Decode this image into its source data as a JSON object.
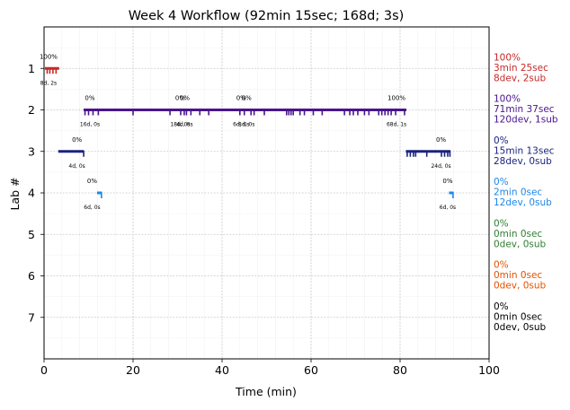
{
  "chart_data": {
    "type": "timeline",
    "title": "Week 4 Workflow (92min 15sec; 168d; 3s)",
    "xlabel": "Time (min)",
    "ylabel": "Lab #",
    "xlim": [
      0,
      100
    ],
    "ylim": [
      8,
      0
    ],
    "x_ticks": [
      "0",
      "20",
      "40",
      "60",
      "80",
      "100"
    ],
    "y_ticks": [
      "1",
      "2",
      "3",
      "4",
      "5",
      "6",
      "7"
    ],
    "grid": true,
    "labs": [
      {
        "lab": 1,
        "color": "#c62828",
        "summary": [
          "100%",
          "3min 25sec",
          "8dev, 2sub"
        ],
        "segments": [
          [
            0.2,
            3.4
          ]
        ],
        "ticks": [
          0.7,
          1.3,
          2.0,
          2.7
        ],
        "annotations": [
          {
            "x": 1.0,
            "top": "100%",
            "bottom": "8d, 2s"
          }
        ]
      },
      {
        "lab": 2,
        "color": "#4a148c",
        "summary": [
          "100%",
          "71min 37sec",
          "120dev, 1sub"
        ],
        "segments": [
          [
            8.9,
            13.0
          ],
          [
            12.6,
            81.4
          ]
        ],
        "ticks": [
          9.2,
          10.0,
          11.0,
          12.2,
          20.0,
          28.3,
          30.7,
          31.5,
          32.0,
          33.0,
          35.0,
          37.0,
          44.0,
          45.0,
          46.5,
          47.2,
          49.5,
          54.5,
          55.0,
          55.5,
          56.0,
          57.5,
          58.5,
          60.5,
          62.5,
          67.5,
          68.7,
          69.5,
          70.5,
          72.0,
          73.0,
          75.2,
          75.9,
          76.6,
          77.3,
          78.0,
          79.0,
          81.0
        ],
        "annotations": [
          {
            "x": 10.3,
            "top": "0%",
            "bottom": "16d, 0s"
          },
          {
            "x": 30.6,
            "top": "0%",
            "bottom": "18d, 0s"
          },
          {
            "x": 31.6,
            "top": "0%",
            "bottom": "4d, 0s"
          },
          {
            "x": 44.3,
            "top": "0%",
            "bottom": "6d, 0s"
          },
          {
            "x": 45.5,
            "top": "0%",
            "bottom": "8d, 0s"
          },
          {
            "x": 79.2,
            "top": "100%",
            "bottom": "68d, 1s"
          }
        ]
      },
      {
        "lab": 3,
        "color": "#1a237e",
        "summary": [
          "0%",
          "15min 13sec",
          "28dev, 0sub"
        ],
        "segments": [
          [
            3.2,
            8.9
          ],
          [
            81.3,
            91.3
          ]
        ],
        "ticks": [
          8.9,
          81.6,
          82.3,
          83.0,
          83.5,
          86.0,
          89.3,
          90.0,
          90.7,
          91.2
        ],
        "annotations": [
          {
            "x": 7.4,
            "top": "0%",
            "bottom": "4d, 0s"
          },
          {
            "x": 89.2,
            "top": "0%",
            "bottom": "24d, 0s"
          }
        ]
      },
      {
        "lab": 4,
        "color": "#1e88e5",
        "summary": [
          "0%",
          "2min 0sec",
          "12dev, 0sub"
        ],
        "segments": [
          [
            11.9,
            13.0
          ],
          [
            91.0,
            92.0
          ]
        ],
        "ticks": [
          12.9,
          91.9
        ],
        "annotations": [
          {
            "x": 10.8,
            "top": "0%",
            "bottom": "6d, 0s"
          },
          {
            "x": 90.7,
            "top": "0%",
            "bottom": "6d, 0s"
          }
        ]
      },
      {
        "lab": 5,
        "color": "#2e7d32",
        "summary": [
          "0%",
          "0min 0sec",
          "0dev, 0sub"
        ],
        "segments": [],
        "ticks": [],
        "annotations": []
      },
      {
        "lab": 6,
        "color": "#e65100",
        "summary": [
          "0%",
          "0min 0sec",
          "0dev, 0sub"
        ],
        "segments": [],
        "ticks": [],
        "annotations": []
      },
      {
        "lab": 7,
        "color": "#000000",
        "summary": [
          "0%",
          "0min 0sec",
          "0dev, 0sub"
        ],
        "segments": [],
        "ticks": [],
        "annotations": []
      }
    ]
  }
}
